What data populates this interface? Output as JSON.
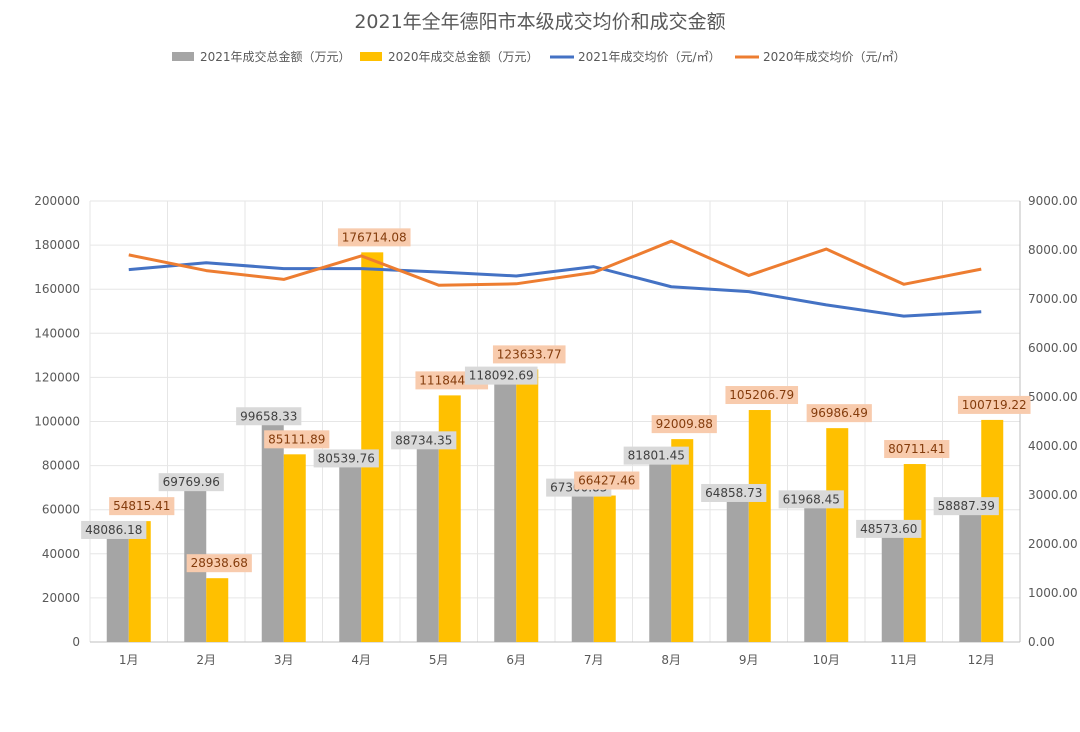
{
  "chart_data": {
    "type": "bar",
    "title": "2021年全年德阳市本级成交均价和成交金额",
    "categories": [
      "1月",
      "2月",
      "3月",
      "4月",
      "5月",
      "6月",
      "7月",
      "8月",
      "9月",
      "10月",
      "11月",
      "12月"
    ],
    "series": [
      {
        "name": "2021年成交总金额（万元）",
        "type": "bar",
        "axis": "left",
        "values": [
          48086.18,
          69769.96,
          99658.33,
          80539.76,
          88734.35,
          118092.69,
          67300.83,
          81801.45,
          64858.73,
          61968.45,
          48573.6,
          58887.39
        ],
        "labels": [
          "48086.18",
          "69769.96",
          "99658.33",
          "80539.76",
          "88734.35",
          "118092.69",
          "67300.83",
          "81801.45",
          "64858.73",
          "61968.45",
          "48573.60",
          "58887.39"
        ]
      },
      {
        "name": "2020年成交总金额（万元）",
        "type": "bar",
        "axis": "left",
        "values": [
          54815.41,
          28938.68,
          85111.89,
          176714.08,
          111844.18,
          123633.77,
          66427.46,
          92009.88,
          105206.79,
          96986.49,
          80711.41,
          100719.22
        ],
        "labels": [
          "54815.41",
          "28938.68",
          "85111.89",
          "176714.08",
          "111844.18",
          "123633.77",
          "66427.46",
          "92009.88",
          "105206.79",
          "96986.49",
          "80711.41",
          "100719.22"
        ]
      },
      {
        "name": "2021年成交均价（元/㎡）",
        "type": "line",
        "axis": "right",
        "values": [
          7600,
          7740,
          7620,
          7620,
          7550,
          7470,
          7660,
          7250,
          7150,
          6880,
          6650,
          6740
        ]
      },
      {
        "name": "2020年成交均价（元/㎡）",
        "type": "line",
        "axis": "right",
        "values": [
          7900,
          7580,
          7400,
          7880,
          7280,
          7310,
          7540,
          8180,
          7480,
          8020,
          7300,
          7610
        ]
      }
    ],
    "y_left": {
      "min": 0,
      "max": 200000,
      "step": 20000,
      "tick_labels": [
        "0",
        "20000",
        "40000",
        "60000",
        "80000",
        "100000",
        "120000",
        "140000",
        "160000",
        "180000",
        "200000"
      ]
    },
    "y_right": {
      "min": 0,
      "max": 9000,
      "step": 1000,
      "tick_labels": [
        "0.00",
        "1000.00",
        "2000.00",
        "3000.00",
        "4000.00",
        "5000.00",
        "6000.00",
        "7000.00",
        "8000.00",
        "9000.00"
      ]
    },
    "grid": true,
    "legend_position": "top",
    "colors": {
      "bar2021": "#a5a5a5",
      "bar2020": "#ffc000",
      "line2021": "#4472c4",
      "line2020": "#ed7d31",
      "label2021_bg": "#d9d9d9",
      "label2021_text": "#404040",
      "label2020_bg": "#f8cbad",
      "label2020_text": "#843c0c"
    }
  }
}
